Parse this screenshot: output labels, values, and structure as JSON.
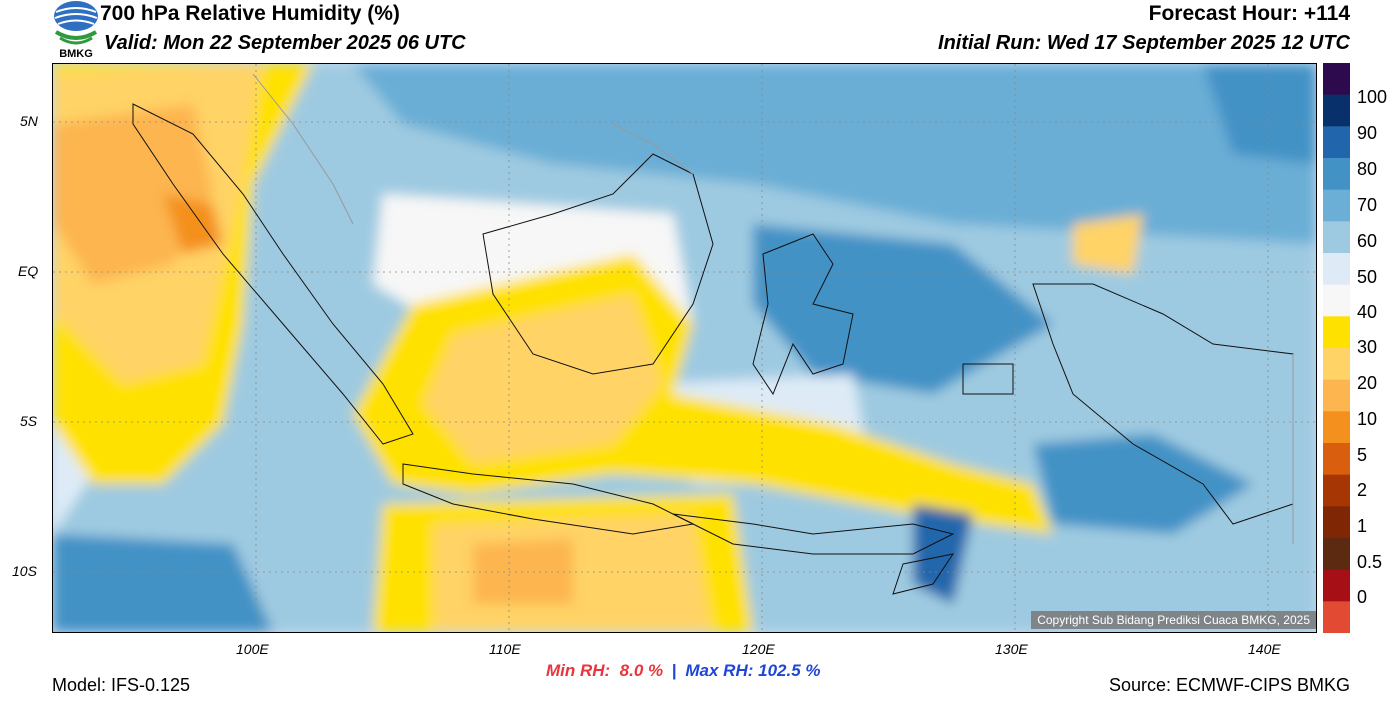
{
  "header": {
    "title": "700 hPa Relative Humidity (%)",
    "valid": "Valid: Mon 22 September 2025 06 UTC",
    "forecast_hour": "Forecast Hour: +114",
    "initial_run": "Initial Run: Wed 17 September 2025 12 UTC",
    "logo_text": "BMKG"
  },
  "map": {
    "lat_labels": [
      "5N",
      "EQ",
      "5S",
      "10S"
    ],
    "lon_labels": [
      "100E",
      "110E",
      "120E",
      "130E",
      "140E"
    ],
    "copyright": "Copyright Sub Bidang Prediksi Cuaca BMKG, 2025"
  },
  "colorbar": {
    "labels": [
      "100",
      "90",
      "80",
      "70",
      "60",
      "50",
      "40",
      "30",
      "20",
      "10",
      "5",
      "2",
      "1",
      "0.5",
      "0"
    ],
    "colors": [
      "#2d0a4e",
      "#08306b",
      "#2166ac",
      "#4292c6",
      "#6baed6",
      "#9ecae1",
      "#deebf7",
      "#f7f7f7",
      "#ffe100",
      "#ffd366",
      "#fdb54f",
      "#f4901e",
      "#d95f0e",
      "#a63603",
      "#7f2704",
      "#5c2a10",
      "#a50f15",
      "#e34a33"
    ]
  },
  "footer": {
    "model": "Model: IFS-0.125",
    "source": "Source: ECMWF-CIPS BMKG",
    "min_label": "Min RH:",
    "min_value": "8.0 %",
    "separator": "|",
    "max_label": "Max RH:",
    "max_value": "102.5 %"
  }
}
